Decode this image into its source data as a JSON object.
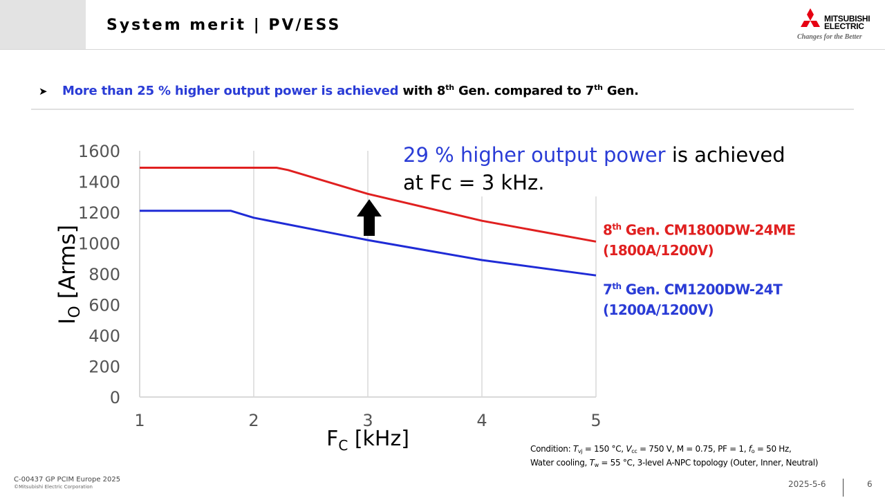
{
  "header": {
    "title": "System merit | PV/ESS",
    "logo": {
      "name_line1": "MITSUBISHI",
      "name_line2": "ELECTRIC",
      "tagline": "Changes for the Better",
      "icon": "three-diamonds-logo-icon"
    }
  },
  "bullet": {
    "icon": "arrowhead-bullet-icon",
    "highlight": "More than 25 % higher output power is achieved",
    "rest_1": " with 8",
    "sup_1": "th",
    "rest_2": " Gen. compared to 7",
    "sup_2": "th",
    "rest_3": " Gen."
  },
  "callout": {
    "highlight": "29 % higher output power",
    "rest_line1": " is achieved",
    "line2": "at Fc = 3 kHz.",
    "arrow_icon": "up-arrow-icon"
  },
  "colors": {
    "gen8": "#e02020",
    "gen7": "#1f2bd6",
    "highlight": "#2a3cd6",
    "grid": "#d9d9d9"
  },
  "chart_data": {
    "type": "line",
    "xlabel": "FC [kHz]",
    "ylabel": "IO [Arms]",
    "xlim": [
      1,
      5
    ],
    "ylim": [
      0,
      1600
    ],
    "xticks": [
      1,
      2,
      3,
      4,
      5
    ],
    "yticks": [
      0,
      200,
      400,
      600,
      800,
      1000,
      1200,
      1400,
      1600
    ],
    "grid": "vertical",
    "series": [
      {
        "key": "gen8",
        "label_gen": "8",
        "label_sup": "th",
        "label_model": " Gen. CM1800DW-24ME",
        "label_rating": "(1800A/1200V)",
        "x": [
          1,
          2,
          2.2,
          2.3,
          3,
          4,
          5
        ],
        "values": [
          1490,
          1490,
          1490,
          1475,
          1320,
          1145,
          1010
        ]
      },
      {
        "key": "gen7",
        "label_gen": "7",
        "label_sup": "th",
        "label_model": " Gen. CM1200DW-24T",
        "label_rating": "(1200A/1200V)",
        "x": [
          1,
          1.8,
          2,
          3,
          4,
          5
        ],
        "values": [
          1210,
          1210,
          1165,
          1020,
          890,
          790
        ]
      }
    ]
  },
  "condition": {
    "line1_a": "Condition: ",
    "tvj": "T",
    "tvj_sub": "vj",
    "line1_b": " = 150 °C, ",
    "vcc": "V",
    "vcc_sub": "cc",
    "line1_c": " = 750 V, M = 0.75, PF = 1, ",
    "fo": "f",
    "fo_sub": "o",
    "line1_d": " = 50 Hz,",
    "line2_a": "Water cooling, ",
    "tw": "T",
    "tw_sub": "w",
    "line2_b": " = 55 °C, 3-level A-NPC topology (Outer, Inner, Neutral)"
  },
  "footer": {
    "code": "C-00437 GP PCIM Europe 2025",
    "copyright": "©Mitsubishi Electric Corporation",
    "date": "2025-5-6",
    "page": "6"
  }
}
